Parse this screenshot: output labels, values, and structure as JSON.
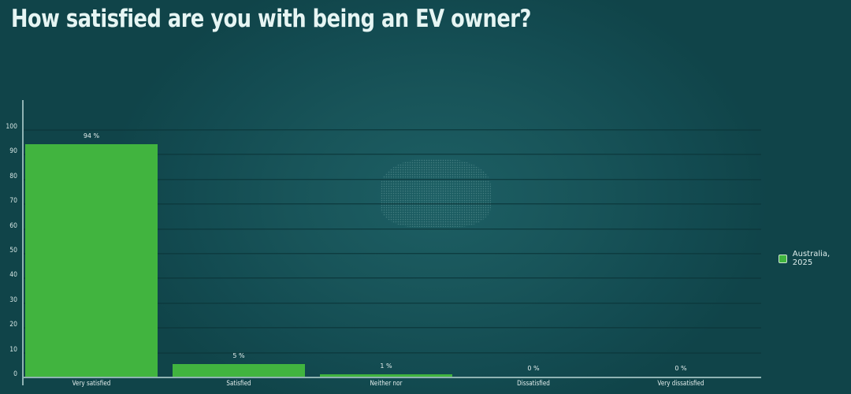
{
  "title": "How satisfied are you with being an EV owner?",
  "colors": {
    "bar": "#41b43f",
    "background": "#134b51",
    "text": "#e6f5f3"
  },
  "chart_data": {
    "type": "bar",
    "title": "How satisfied are you with being an EV owner?",
    "xlabel": "",
    "ylabel": "",
    "ylim": [
      0,
      100
    ],
    "yticks": [
      "0",
      "10",
      "20",
      "30",
      "40",
      "50",
      "60",
      "70",
      "80",
      "90",
      "100"
    ],
    "categories": [
      "Very satisfied",
      "Satisfied",
      "Neither nor",
      "Dissatisfied",
      "Very dissatisfied"
    ],
    "series": [
      {
        "name": "Australia, 2025",
        "values": [
          94,
          5,
          1,
          0,
          0
        ]
      }
    ],
    "data_labels": [
      "94 %",
      "5 %",
      "1 %",
      "0 %",
      "0 %"
    ],
    "grid": true,
    "legend_position": "right"
  },
  "legend": {
    "items": [
      {
        "label": "Australia, 2025"
      }
    ]
  }
}
